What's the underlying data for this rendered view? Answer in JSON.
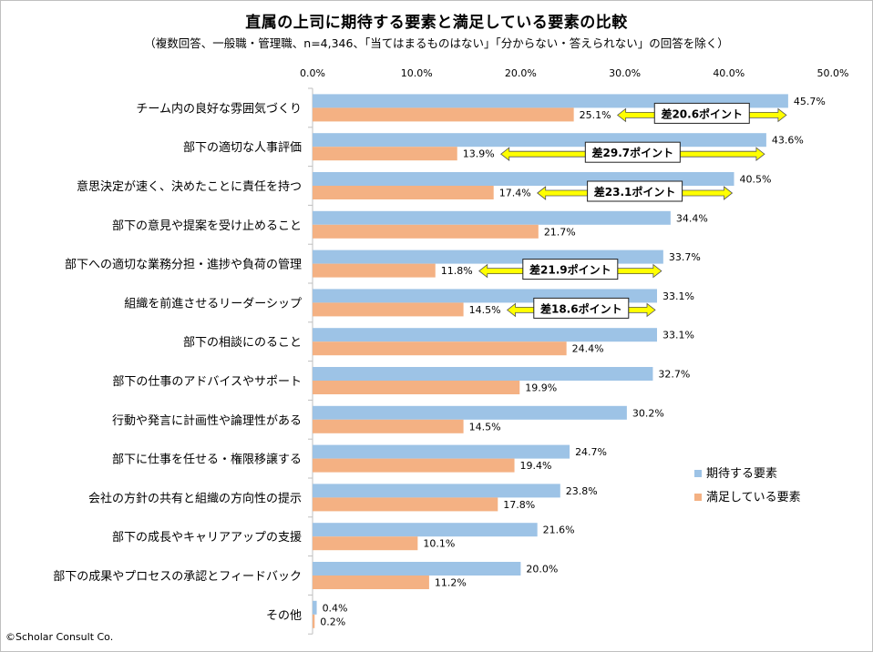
{
  "chart_data": {
    "type": "bar",
    "orientation": "horizontal",
    "title": "直属の上司に期待する要素と満足している要素の比較",
    "subtitle": "（複数回答、一般職・管理職、n=4,346、「当てはまるものはない」「分からない・答えられない」の回答を除く）",
    "xlim": [
      0,
      50
    ],
    "x_ticks": [
      "0.0%",
      "10.0%",
      "20.0%",
      "30.0%",
      "40.0%",
      "50.0%"
    ],
    "legend_position": "right",
    "categories": [
      "チーム内の良好な雰囲気づくり",
      "部下の適切な人事評価",
      "意思決定が速く、決めたことに責任を持つ",
      "部下の意見や提案を受け止めること",
      "部下への適切な業務分担・進捗や負荷の管理",
      "組織を前進させるリーダーシップ",
      "部下の相談にのること",
      "部下の仕事のアドバイスやサポート",
      "行動や発言に計画性や論理性がある",
      "部下に仕事を任せる・権限移譲する",
      "会社の方針の共有と組織の方向性の提示",
      "部下の成長やキャリアアップの支援",
      "部下の成果やプロセスの承認とフィードバック",
      "その他"
    ],
    "series": [
      {
        "name": "期待する要素",
        "color": "#9dc3e6",
        "values": [
          45.7,
          43.6,
          40.5,
          34.4,
          33.7,
          33.1,
          33.1,
          32.7,
          30.2,
          24.7,
          23.8,
          21.6,
          20.0,
          0.4
        ],
        "labels": [
          "45.7%",
          "43.6%",
          "40.5%",
          "34.4%",
          "33.7%",
          "33.1%",
          "33.1%",
          "32.7%",
          "30.2%",
          "24.7%",
          "23.8%",
          "21.6%",
          "20.0%",
          "0.4%"
        ]
      },
      {
        "name": "満足している要素",
        "color": "#f4b183",
        "values": [
          25.1,
          13.9,
          17.4,
          21.7,
          11.8,
          14.5,
          24.4,
          19.9,
          14.5,
          19.4,
          17.8,
          10.1,
          11.2,
          0.2
        ],
        "labels": [
          "25.1%",
          "13.9%",
          "17.4%",
          "21.7%",
          "11.8%",
          "14.5%",
          "24.4%",
          "19.9%",
          "14.5%",
          "19.4%",
          "17.8%",
          "10.1%",
          "11.2%",
          "0.2%"
        ]
      }
    ],
    "annotations": [
      {
        "category_index": 0,
        "text": "差20.6ポイント"
      },
      {
        "category_index": 1,
        "text": "差29.7ポイント"
      },
      {
        "category_index": 2,
        "text": "差23.1ポイント"
      },
      {
        "category_index": 4,
        "text": "差21.9ポイント"
      },
      {
        "category_index": 5,
        "text": "差18.6ポイント"
      }
    ],
    "arrow_color": "#ffff00"
  },
  "footer": {
    "copyright": "©Scholar Consult Co."
  }
}
